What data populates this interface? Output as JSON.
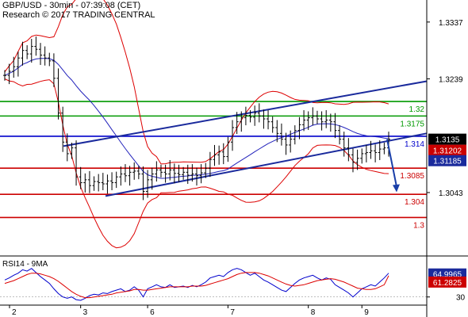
{
  "header": {
    "line1": "GBP/USD - 30min - 07:39:08 (CET)",
    "line2": "Research © 2017 TRADING CENTRAL"
  },
  "colors": {
    "price": "#000000",
    "bollinger": "#dd0000",
    "moving_average": "#2222bb",
    "channel": "#1a2a9c",
    "resistance": "#009900",
    "pivot": "#0000cc",
    "support": "#cc0000",
    "arrow": "#1a3fa8",
    "rsi": "#0000cc",
    "rsi_ma": "#dd0000",
    "price_badge": "#000000",
    "bb_badge": "#cc0000",
    "ma_badge": "#1a2a9c"
  },
  "chart_data": [
    {
      "type": "candlestick",
      "title": "GBP/USD - 30min",
      "x_tick_labels": [
        "2",
        "3",
        "6",
        "7",
        "8",
        "9"
      ],
      "y_tick_labels": [
        "1.3337",
        "1.3239",
        "1.3043"
      ],
      "ylim": [
        1.2935,
        1.3375
      ],
      "level_lines": [
        {
          "label": "1.32",
          "value": 1.32,
          "role": "resistance"
        },
        {
          "label": "1.3175",
          "value": 1.3175,
          "role": "resistance"
        },
        {
          "label": "1.314",
          "value": 1.314,
          "role": "pivot"
        },
        {
          "label": "1.3085",
          "value": 1.3085,
          "role": "support"
        },
        {
          "label": "1.304",
          "value": 1.304,
          "role": "support"
        },
        {
          "label": "1.3",
          "value": 1.3,
          "role": "support"
        }
      ],
      "price_badges": [
        {
          "label": "1.3135",
          "role": "last_price"
        },
        {
          "label": "1.31202",
          "role": "bollinger"
        },
        {
          "label": "1.31185",
          "role": "moving_average"
        }
      ],
      "closes": [
        1.3245,
        1.3252,
        1.326,
        1.3275,
        1.3288,
        1.3282,
        1.3295,
        1.329,
        1.328,
        1.3275,
        1.327,
        1.324,
        1.318,
        1.313,
        1.311,
        1.312,
        1.307,
        1.306,
        1.3065,
        1.3055,
        1.3062,
        1.306,
        1.3058,
        1.3063,
        1.306,
        1.307,
        1.3075,
        1.3072,
        1.3078,
        1.308,
        1.3075,
        1.3045,
        1.3065,
        1.3075,
        1.3082,
        1.3078,
        1.3075,
        1.3082,
        1.3076,
        1.3074,
        1.3078,
        1.3073,
        1.3075,
        1.3072,
        1.3077,
        1.3085,
        1.31,
        1.3108,
        1.3113,
        1.3105,
        1.313,
        1.3155,
        1.3165,
        1.3172,
        1.3176,
        1.3173,
        1.318,
        1.3175,
        1.317,
        1.3165,
        1.3155,
        1.3145,
        1.3135,
        1.3125,
        1.3135,
        1.315,
        1.316,
        1.3168,
        1.3172,
        1.3175,
        1.317,
        1.3165,
        1.3168,
        1.3165,
        1.315,
        1.3135,
        1.312,
        1.3108,
        1.3095,
        1.3102,
        1.311,
        1.3112,
        1.3115,
        1.3112,
        1.3118,
        1.312,
        1.3135
      ],
      "channel_upper": [
        [
          1.3123,
          1.3235
        ]
      ],
      "channel_lower": [
        [
          1.3037,
          1.3145
        ]
      ],
      "forecast_arrow": [
        1.3135,
        1.3045
      ]
    },
    {
      "type": "line",
      "title": "RSI14 - 9MA",
      "y_tick_labels": [
        "30"
      ],
      "ylim": [
        18,
        88
      ],
      "value_badges": [
        {
          "label": "64.9965",
          "role": "rsi"
        },
        {
          "label": "61.2825",
          "role": "ma"
        }
      ],
      "series": [
        {
          "name": "RSI14",
          "values": [
            55,
            58,
            62,
            65,
            70,
            68,
            72,
            66,
            60,
            55,
            50,
            42,
            35,
            30,
            28,
            30,
            26,
            25,
            28,
            32,
            34,
            33,
            36,
            35,
            38,
            40,
            42,
            38,
            40,
            45,
            40,
            30,
            42,
            45,
            48,
            45,
            44,
            48,
            44,
            45,
            46,
            44,
            47,
            45,
            48,
            52,
            58,
            60,
            62,
            60,
            66,
            70,
            72,
            70,
            66,
            62,
            65,
            60,
            55,
            52,
            48,
            44,
            40,
            38,
            44,
            50,
            55,
            58,
            60,
            62,
            58,
            55,
            58,
            56,
            48,
            44,
            40,
            36,
            30,
            36,
            42,
            45,
            48,
            46,
            52,
            58,
            65
          ]
        },
        {
          "name": "9MA",
          "values": [
            50,
            52,
            54,
            57,
            60,
            63,
            65,
            65,
            64,
            62,
            60,
            57,
            53,
            48,
            43,
            38,
            34,
            31,
            29,
            29,
            30,
            31,
            32,
            33,
            34,
            36,
            37,
            38,
            39,
            41,
            41,
            40,
            40,
            41,
            42,
            43,
            44,
            45,
            45,
            45,
            45,
            45,
            46,
            46,
            46,
            47,
            49,
            51,
            53,
            55,
            57,
            60,
            63,
            65,
            66,
            66,
            66,
            65,
            63,
            61,
            58,
            55,
            52,
            49,
            47,
            46,
            47,
            48,
            50,
            52,
            54,
            55,
            56,
            57,
            56,
            54,
            52,
            49,
            46,
            43,
            42,
            41,
            41,
            42,
            45,
            48,
            61.28
          ]
        }
      ]
    }
  ]
}
